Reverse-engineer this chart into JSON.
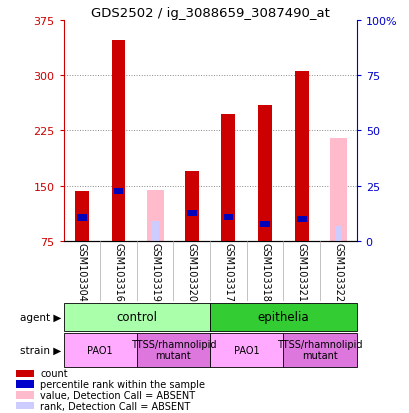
{
  "title": "GDS2502 / ig_3088659_3087490_at",
  "samples": [
    "GSM103304",
    "GSM103316",
    "GSM103319",
    "GSM103320",
    "GSM103317",
    "GSM103318",
    "GSM103321",
    "GSM103322"
  ],
  "ymin": 75,
  "ymax": 375,
  "yticks": [
    75,
    150,
    225,
    300,
    375
  ],
  "y2ticks": [
    0,
    25,
    50,
    75,
    100
  ],
  "red_bars": [
    143,
    348,
    null,
    170,
    247,
    260,
    305,
    null
  ],
  "blue_bars": [
    107,
    143,
    null,
    113,
    108,
    98,
    105,
    null
  ],
  "pink_bars": [
    null,
    null,
    145,
    null,
    null,
    null,
    null,
    215
  ],
  "lavender_bars": [
    null,
    null,
    103,
    null,
    null,
    null,
    null,
    95
  ],
  "agent_groups": [
    {
      "label": "control",
      "start": 0,
      "end": 4,
      "color": "#aaffaa"
    },
    {
      "label": "epithelia",
      "start": 4,
      "end": 8,
      "color": "#33cc33"
    }
  ],
  "strain_groups": [
    {
      "label": "PAO1",
      "start": 0,
      "end": 2,
      "color": "#ffaaff"
    },
    {
      "label": "TTSS/rhamnolipid\nmutant",
      "start": 2,
      "end": 4,
      "color": "#dd77dd"
    },
    {
      "label": "PAO1",
      "start": 4,
      "end": 6,
      "color": "#ffaaff"
    },
    {
      "label": "TTSS/rhamnolipid\nmutant",
      "start": 6,
      "end": 8,
      "color": "#dd77dd"
    }
  ],
  "legend_items": [
    {
      "color": "#cc0000",
      "label": "count"
    },
    {
      "color": "#0000cc",
      "label": "percentile rank within the sample"
    },
    {
      "color": "#ffbbcc",
      "label": "value, Detection Call = ABSENT"
    },
    {
      "color": "#ccccff",
      "label": "rank, Detection Call = ABSENT"
    }
  ],
  "red_color": "#cc0000",
  "blue_color": "#0000bb",
  "pink_color": "#ffbbcc",
  "lavender_color": "#ccccff",
  "grid_color": "#888888",
  "axis_color_left": "#cc0000",
  "axis_color_right": "#0000cc"
}
